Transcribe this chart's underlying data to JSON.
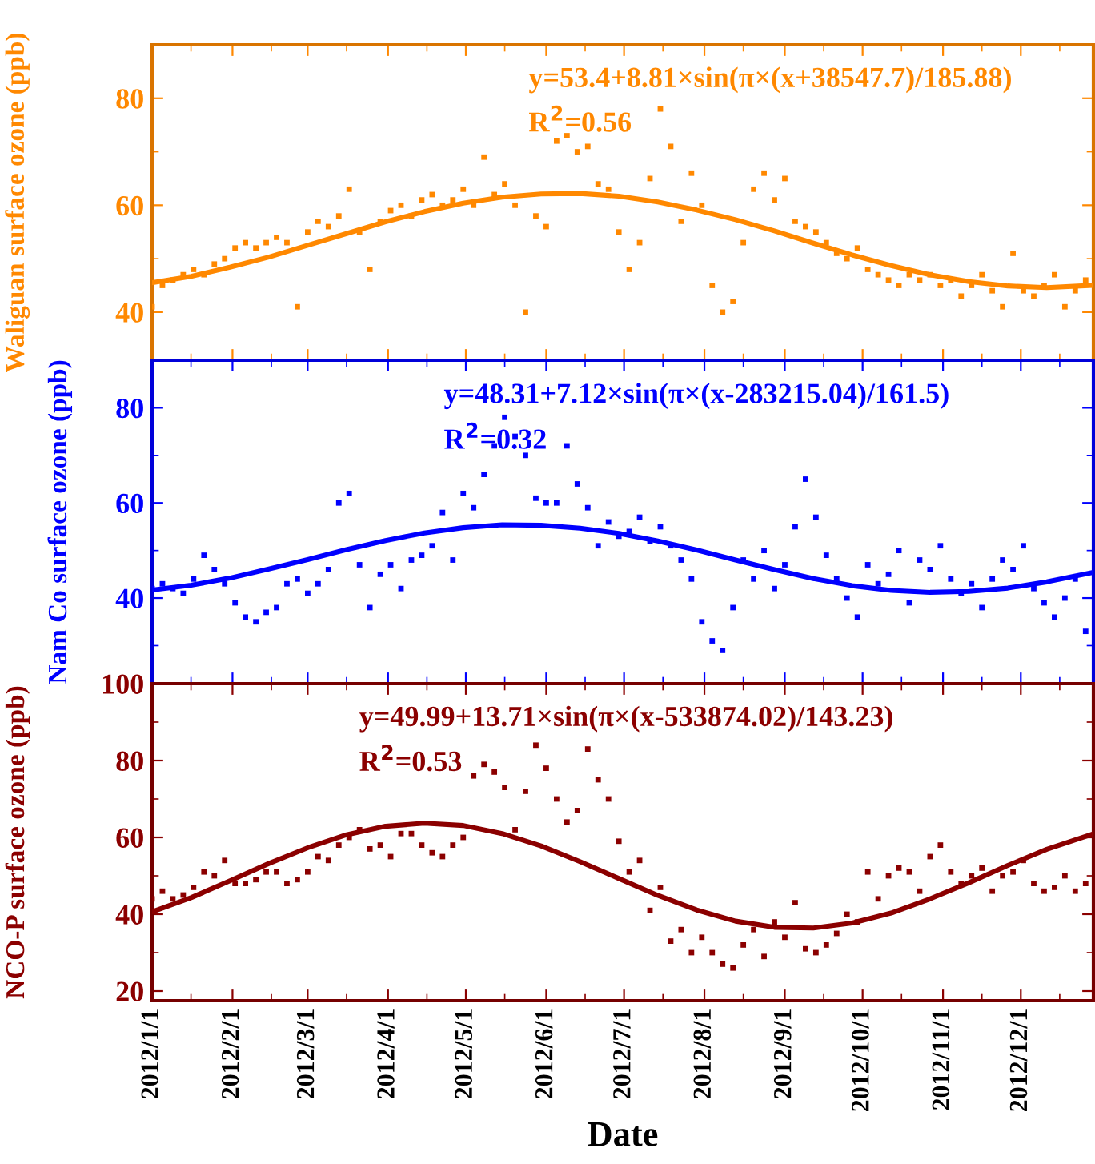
{
  "chart_data": [
    {
      "type": "scatter",
      "ylabel": "Waliguan surface ozone (ppb)",
      "ylim": [
        31,
        90
      ],
      "yticks": [
        40,
        60,
        80
      ],
      "xlim": [
        "2012-01-01",
        "2012-12-29"
      ],
      "xticks": [
        {
          "value": "2012-01-01",
          "label": null
        },
        {
          "value": "2012-02-01",
          "label": null
        },
        {
          "value": "2012-03-01",
          "label": null
        },
        {
          "value": "2012-04-01",
          "label": null
        },
        {
          "value": "2012-05-01",
          "label": null
        },
        {
          "value": "2012-06-01",
          "label": null
        },
        {
          "value": "2012-07-01",
          "label": null
        },
        {
          "value": "2012-08-01",
          "label": null
        },
        {
          "value": "2012-09-01",
          "label": null
        },
        {
          "value": "2012-10-01",
          "label": null
        },
        {
          "value": "2012-11-01",
          "label": null
        },
        {
          "value": "2012-12-01",
          "label": null
        }
      ],
      "tick_labels": "y",
      "grid": false,
      "marker": "square",
      "annotations": [
        "y=53.4+8.81×sin(π×(x+38547.7)/185.88)",
        "R$^{2}$=0.56"
      ],
      "x": [
        "2012-01-01",
        "2012-01-05",
        "2012-01-09",
        "2012-01-13",
        "2012-01-17",
        "2012-01-21",
        "2012-01-25",
        "2012-01-29",
        "2012-02-02",
        "2012-02-06",
        "2012-02-10",
        "2012-02-14",
        "2012-02-18",
        "2012-02-22",
        "2012-02-26",
        "2012-03-01",
        "2012-03-05",
        "2012-03-09",
        "2012-03-13",
        "2012-03-17",
        "2012-03-21",
        "2012-03-25",
        "2012-03-29",
        "2012-04-02",
        "2012-04-06",
        "2012-04-10",
        "2012-04-14",
        "2012-04-18",
        "2012-04-22",
        "2012-04-26",
        "2012-04-30",
        "2012-05-04",
        "2012-05-08",
        "2012-05-12",
        "2012-05-16",
        "2012-05-20",
        "2012-05-24",
        "2012-05-28",
        "2012-06-01",
        "2012-06-05",
        "2012-06-09",
        "2012-06-13",
        "2012-06-17",
        "2012-06-21",
        "2012-06-25",
        "2012-06-29",
        "2012-07-03",
        "2012-07-07",
        "2012-07-11",
        "2012-07-15",
        "2012-07-19",
        "2012-07-23",
        "2012-07-27",
        "2012-07-31",
        "2012-08-04",
        "2012-08-08",
        "2012-08-12",
        "2012-08-16",
        "2012-08-20",
        "2012-08-24",
        "2012-08-28",
        "2012-09-01",
        "2012-09-05",
        "2012-09-09",
        "2012-09-13",
        "2012-09-17",
        "2012-09-21",
        "2012-09-25",
        "2012-09-29",
        "2012-10-03",
        "2012-10-07",
        "2012-10-11",
        "2012-10-15",
        "2012-10-19",
        "2012-10-23",
        "2012-10-27",
        "2012-10-31",
        "2012-11-04",
        "2012-11-08",
        "2012-11-12",
        "2012-11-16",
        "2012-11-20",
        "2012-11-24",
        "2012-11-28",
        "2012-12-02",
        "2012-12-06",
        "2012-12-10",
        "2012-12-14",
        "2012-12-18",
        "2012-12-22",
        "2012-12-26"
      ],
      "series": [
        {
          "color": "#ff8800",
          "values": [
            41,
            45,
            46,
            47,
            48,
            47,
            49,
            50,
            52,
            53,
            52,
            53,
            54,
            53,
            41,
            55,
            57,
            56,
            58,
            63,
            55,
            48,
            57,
            59,
            60,
            58,
            61,
            62,
            60,
            61,
            63,
            60,
            69,
            62,
            64,
            60,
            40,
            58,
            56,
            72,
            73,
            70,
            71,
            64,
            63,
            55,
            48,
            53,
            65,
            78,
            71,
            57,
            66,
            60,
            45,
            40,
            42,
            53,
            63,
            66,
            61,
            65,
            57,
            56,
            55,
            53,
            51,
            50,
            52,
            48,
            47,
            46,
            45,
            47,
            46,
            47,
            45,
            46,
            43,
            45,
            47,
            44,
            41,
            51,
            44,
            43,
            45,
            47,
            41,
            44,
            46
          ]
        },
        {
          "type": "line",
          "marker": "none",
          "color": "#ff8800",
          "x": [
            "2012-01-01",
            "2012-01-16",
            "2012-01-31",
            "2012-02-15",
            "2012-03-01",
            "2012-03-16",
            "2012-03-31",
            "2012-04-15",
            "2012-04-30",
            "2012-05-15",
            "2012-05-30",
            "2012-06-14",
            "2012-06-29",
            "2012-07-14",
            "2012-07-29",
            "2012-08-13",
            "2012-08-28",
            "2012-09-12",
            "2012-09-27",
            "2012-10-12",
            "2012-10-27",
            "2012-11-11",
            "2012-11-26",
            "2012-12-11",
            "2012-12-28"
          ],
          "values": [
            45.5,
            46.7,
            48.4,
            50.3,
            52.5,
            54.7,
            56.9,
            58.8,
            60.4,
            61.5,
            62.1,
            62.2,
            61.7,
            60.6,
            59.1,
            57.3,
            55.2,
            52.9,
            50.7,
            48.7,
            47.0,
            45.7,
            44.9,
            44.6,
            45.0
          ]
        }
      ]
    },
    {
      "type": "scatter",
      "ylabel": "Nam Co surface ozone (ppb)",
      "ylim": [
        22,
        90
      ],
      "yticks": [
        40,
        60,
        80
      ],
      "xlim": [
        "2012-01-01",
        "2012-12-29"
      ],
      "xticks": [
        {
          "value": "2012-01-01",
          "label": null
        },
        {
          "value": "2012-02-01",
          "label": null
        },
        {
          "value": "2012-03-01",
          "label": null
        },
        {
          "value": "2012-04-01",
          "label": null
        },
        {
          "value": "2012-05-01",
          "label": null
        },
        {
          "value": "2012-06-01",
          "label": null
        },
        {
          "value": "2012-07-01",
          "label": null
        },
        {
          "value": "2012-08-01",
          "label": null
        },
        {
          "value": "2012-09-01",
          "label": null
        },
        {
          "value": "2012-10-01",
          "label": null
        },
        {
          "value": "2012-11-01",
          "label": null
        },
        {
          "value": "2012-12-01",
          "label": null
        }
      ],
      "tick_labels": "y",
      "grid": false,
      "marker": "square",
      "annotations": [
        "y=48.31+7.12×sin(π×(x-283215.04)/161.5)",
        "R$^{2}$=0.32"
      ],
      "x": [
        "2012-01-01",
        "2012-01-05",
        "2012-01-09",
        "2012-01-13",
        "2012-01-17",
        "2012-01-21",
        "2012-01-25",
        "2012-01-29",
        "2012-02-02",
        "2012-02-06",
        "2012-02-10",
        "2012-02-14",
        "2012-02-18",
        "2012-02-22",
        "2012-02-26",
        "2012-03-01",
        "2012-03-05",
        "2012-03-09",
        "2012-03-13",
        "2012-03-17",
        "2012-03-21",
        "2012-03-25",
        "2012-03-29",
        "2012-04-02",
        "2012-04-06",
        "2012-04-10",
        "2012-04-14",
        "2012-04-18",
        "2012-04-22",
        "2012-04-26",
        "2012-04-30",
        "2012-05-04",
        "2012-05-08",
        "2012-05-12",
        "2012-05-16",
        "2012-05-20",
        "2012-05-24",
        "2012-05-28",
        "2012-06-01",
        "2012-06-05",
        "2012-06-09",
        "2012-06-13",
        "2012-06-17",
        "2012-06-21",
        "2012-06-25",
        "2012-06-29",
        "2012-07-03",
        "2012-07-07",
        "2012-07-11",
        "2012-07-15",
        "2012-07-19",
        "2012-07-23",
        "2012-07-27",
        "2012-07-31",
        "2012-08-04",
        "2012-08-08",
        "2012-08-12",
        "2012-08-16",
        "2012-08-20",
        "2012-08-24",
        "2012-08-28",
        "2012-09-01",
        "2012-09-05",
        "2012-09-09",
        "2012-09-13",
        "2012-09-17",
        "2012-09-21",
        "2012-09-25",
        "2012-09-29",
        "2012-10-03",
        "2012-10-07",
        "2012-10-11",
        "2012-10-15",
        "2012-10-19",
        "2012-10-23",
        "2012-10-27",
        "2012-10-31",
        "2012-11-04",
        "2012-11-08",
        "2012-11-12",
        "2012-11-16",
        "2012-11-20",
        "2012-11-24",
        "2012-11-28",
        "2012-12-02",
        "2012-12-06",
        "2012-12-10",
        "2012-12-14",
        "2012-12-18",
        "2012-12-22",
        "2012-12-26"
      ],
      "series": [
        {
          "color": "#0000ff",
          "values": [
            42,
            43,
            42,
            41,
            44,
            49,
            46,
            43,
            39,
            36,
            35,
            37,
            38,
            43,
            44,
            41,
            43,
            46,
            60,
            62,
            47,
            38,
            45,
            47,
            42,
            48,
            49,
            51,
            58,
            48,
            62,
            59,
            66,
            72,
            78,
            74,
            70,
            61,
            60,
            60,
            72,
            64,
            59,
            51,
            56,
            53,
            54,
            57,
            52,
            55,
            51,
            48,
            44,
            35,
            31,
            29,
            38,
            48,
            44,
            50,
            42,
            47,
            55,
            65,
            57,
            49,
            44,
            40,
            36,
            47,
            43,
            45,
            50,
            39,
            48,
            46,
            51,
            44,
            41,
            43,
            38,
            44,
            48,
            46,
            51,
            42,
            39,
            36,
            40,
            44,
            33
          ]
        },
        {
          "type": "line",
          "marker": "none",
          "color": "#0000ff",
          "x": [
            "2012-01-01",
            "2012-01-16",
            "2012-01-31",
            "2012-02-15",
            "2012-03-01",
            "2012-03-16",
            "2012-03-31",
            "2012-04-15",
            "2012-04-30",
            "2012-05-15",
            "2012-05-30",
            "2012-06-14",
            "2012-06-29",
            "2012-07-14",
            "2012-07-29",
            "2012-08-13",
            "2012-08-28",
            "2012-09-12",
            "2012-09-27",
            "2012-10-12",
            "2012-10-27",
            "2012-11-11",
            "2012-11-26",
            "2012-12-11",
            "2012-12-28"
          ],
          "values": [
            41.7,
            42.7,
            44.2,
            46.1,
            48.1,
            50.2,
            52.1,
            53.7,
            54.8,
            55.4,
            55.3,
            54.7,
            53.6,
            52.0,
            50.1,
            48.0,
            46.0,
            44.1,
            42.6,
            41.6,
            41.2,
            41.4,
            42.1,
            43.4,
            45.3
          ]
        }
      ]
    },
    {
      "type": "scatter",
      "ylabel": "NCO-P surface ozone (ppb)",
      "xlabel": "Date",
      "ylim": [
        17.5,
        100
      ],
      "yticks": [
        20,
        40,
        60,
        80,
        100
      ],
      "xlim": [
        "2012-01-01",
        "2012-12-29"
      ],
      "xticks": [
        {
          "value": "2012-01-01",
          "label": "2012/1/1"
        },
        {
          "value": "2012-02-01",
          "label": "2012/2/1"
        },
        {
          "value": "2012-03-01",
          "label": "2012/3/1"
        },
        {
          "value": "2012-04-01",
          "label": "2012/4/1"
        },
        {
          "value": "2012-05-01",
          "label": "2012/5/1"
        },
        {
          "value": "2012-06-01",
          "label": "2012/6/1"
        },
        {
          "value": "2012-07-01",
          "label": "2012/7/1"
        },
        {
          "value": "2012-08-01",
          "label": "2012/8/1"
        },
        {
          "value": "2012-09-01",
          "label": "2012/9/1"
        },
        {
          "value": "2012-10-01",
          "label": "2012/10/1"
        },
        {
          "value": "2012-11-01",
          "label": "2012/11/1"
        },
        {
          "value": "2012-12-01",
          "label": "2012/12/1"
        }
      ],
      "grid": false,
      "marker": "square",
      "annotations": [
        "y=49.99+13.71×sin(π×(x-533874.02)/143.23)",
        "R$^{2}$=0.53"
      ],
      "x": [
        "2012-01-01",
        "2012-01-05",
        "2012-01-09",
        "2012-01-13",
        "2012-01-17",
        "2012-01-21",
        "2012-01-25",
        "2012-01-29",
        "2012-02-02",
        "2012-02-06",
        "2012-02-10",
        "2012-02-14",
        "2012-02-18",
        "2012-02-22",
        "2012-02-26",
        "2012-03-01",
        "2012-03-05",
        "2012-03-09",
        "2012-03-13",
        "2012-03-17",
        "2012-03-21",
        "2012-03-25",
        "2012-03-29",
        "2012-04-02",
        "2012-04-06",
        "2012-04-10",
        "2012-04-14",
        "2012-04-18",
        "2012-04-22",
        "2012-04-26",
        "2012-04-30",
        "2012-05-04",
        "2012-05-08",
        "2012-05-12",
        "2012-05-16",
        "2012-05-20",
        "2012-05-24",
        "2012-05-28",
        "2012-06-01",
        "2012-06-05",
        "2012-06-09",
        "2012-06-13",
        "2012-06-17",
        "2012-06-21",
        "2012-06-25",
        "2012-06-29",
        "2012-07-03",
        "2012-07-07",
        "2012-07-11",
        "2012-07-15",
        "2012-07-19",
        "2012-07-23",
        "2012-07-27",
        "2012-07-31",
        "2012-08-04",
        "2012-08-08",
        "2012-08-12",
        "2012-08-16",
        "2012-08-20",
        "2012-08-24",
        "2012-08-28",
        "2012-09-01",
        "2012-09-05",
        "2012-09-09",
        "2012-09-13",
        "2012-09-17",
        "2012-09-21",
        "2012-09-25",
        "2012-09-29",
        "2012-10-03",
        "2012-10-07",
        "2012-10-11",
        "2012-10-15",
        "2012-10-19",
        "2012-10-23",
        "2012-10-27",
        "2012-10-31",
        "2012-11-04",
        "2012-11-08",
        "2012-11-12",
        "2012-11-16",
        "2012-11-20",
        "2012-11-24",
        "2012-11-28",
        "2012-12-02",
        "2012-12-06",
        "2012-12-10",
        "2012-12-14",
        "2012-12-18",
        "2012-12-22",
        "2012-12-26"
      ],
      "series": [
        {
          "color": "#8b0000",
          "values": [
            44,
            46,
            44,
            45,
            47,
            51,
            50,
            54,
            48,
            48,
            49,
            51,
            51,
            48,
            49,
            51,
            55,
            54,
            58,
            60,
            62,
            57,
            58,
            55,
            61,
            61,
            58,
            56,
            55,
            58,
            60,
            76,
            79,
            77,
            73,
            62,
            72,
            84,
            78,
            70,
            64,
            67,
            83,
            75,
            70,
            59,
            51,
            54,
            41,
            47,
            33,
            36,
            30,
            34,
            30,
            27,
            26,
            32,
            36,
            29,
            38,
            34,
            43,
            31,
            30,
            32,
            35,
            40,
            38,
            51,
            44,
            50,
            52,
            51,
            46,
            55,
            58,
            51,
            48,
            50,
            52,
            46,
            50,
            51,
            54,
            48,
            46,
            47,
            50,
            46,
            48
          ]
        },
        {
          "type": "line",
          "marker": "none",
          "color": "#8b0000",
          "x": [
            "2012-01-01",
            "2012-01-16",
            "2012-01-31",
            "2012-02-15",
            "2012-03-01",
            "2012-03-16",
            "2012-03-31",
            "2012-04-15",
            "2012-04-30",
            "2012-05-15",
            "2012-05-30",
            "2012-06-14",
            "2012-06-29",
            "2012-07-14",
            "2012-07-29",
            "2012-08-13",
            "2012-08-28",
            "2012-09-12",
            "2012-09-27",
            "2012-10-12",
            "2012-10-27",
            "2012-11-11",
            "2012-11-26",
            "2012-12-11",
            "2012-12-28"
          ],
          "values": [
            40.6,
            44.3,
            48.7,
            53.2,
            57.3,
            60.7,
            62.9,
            63.7,
            63.1,
            61.0,
            57.8,
            53.7,
            49.3,
            44.9,
            41.1,
            38.2,
            36.6,
            36.4,
            37.7,
            40.3,
            44.0,
            48.2,
            52.7,
            56.9,
            60.7
          ]
        }
      ]
    }
  ]
}
